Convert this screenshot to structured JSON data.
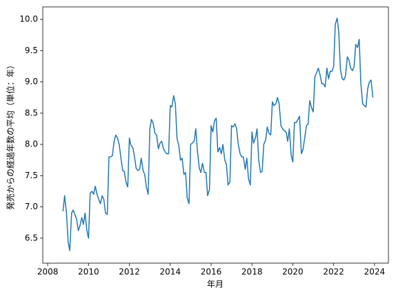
{
  "chart_data": {
    "type": "line",
    "x_label": "年月",
    "y_label": "発売からの経過年数の平均（単位：年）",
    "x": [
      2008.75,
      2008.83,
      2008.92,
      2009.0,
      2009.08,
      2009.17,
      2009.25,
      2009.33,
      2009.42,
      2009.5,
      2009.58,
      2009.67,
      2009.75,
      2009.83,
      2009.92,
      2010.0,
      2010.08,
      2010.17,
      2010.25,
      2010.33,
      2010.42,
      2010.5,
      2010.58,
      2010.67,
      2010.75,
      2010.83,
      2010.92,
      2011.0,
      2011.08,
      2011.17,
      2011.25,
      2011.33,
      2011.42,
      2011.5,
      2011.58,
      2011.67,
      2011.75,
      2011.83,
      2011.92,
      2012.0,
      2012.08,
      2012.17,
      2012.25,
      2012.33,
      2012.42,
      2012.5,
      2012.58,
      2012.67,
      2012.75,
      2012.83,
      2012.92,
      2013.0,
      2013.08,
      2013.17,
      2013.25,
      2013.33,
      2013.42,
      2013.5,
      2013.58,
      2013.67,
      2013.75,
      2013.83,
      2013.92,
      2014.0,
      2014.08,
      2014.17,
      2014.25,
      2014.33,
      2014.42,
      2014.5,
      2014.58,
      2014.67,
      2014.75,
      2014.83,
      2014.92,
      2015.0,
      2015.08,
      2015.17,
      2015.25,
      2015.33,
      2015.42,
      2015.5,
      2015.58,
      2015.67,
      2015.75,
      2015.83,
      2015.92,
      2016.0,
      2016.08,
      2016.17,
      2016.25,
      2016.33,
      2016.42,
      2016.5,
      2016.58,
      2016.67,
      2016.75,
      2016.83,
      2016.92,
      2017.0,
      2017.08,
      2017.17,
      2017.25,
      2017.33,
      2017.42,
      2017.5,
      2017.58,
      2017.67,
      2017.75,
      2017.83,
      2017.92,
      2018.0,
      2018.08,
      2018.17,
      2018.25,
      2018.33,
      2018.42,
      2018.5,
      2018.58,
      2018.67,
      2018.75,
      2018.83,
      2018.92,
      2019.0,
      2019.08,
      2019.17,
      2019.25,
      2019.33,
      2019.42,
      2019.5,
      2019.58,
      2019.67,
      2019.75,
      2019.83,
      2019.92,
      2020.0,
      2020.08,
      2020.17,
      2020.25,
      2020.33,
      2020.42,
      2020.5,
      2020.58,
      2020.67,
      2020.75,
      2020.83,
      2020.92,
      2021.0,
      2021.08,
      2021.17,
      2021.25,
      2021.33,
      2021.42,
      2021.5,
      2021.58,
      2021.67,
      2021.75,
      2021.83,
      2021.92,
      2022.0,
      2022.08,
      2022.17,
      2022.25,
      2022.33,
      2022.42,
      2022.5,
      2022.58,
      2022.67,
      2022.75,
      2022.83,
      2022.92,
      2023.0,
      2023.08,
      2023.17,
      2023.25,
      2023.33,
      2023.42,
      2023.5,
      2023.58,
      2023.67,
      2023.75,
      2023.83,
      2023.92
    ],
    "series": [
      {
        "color": "#1f77b4",
        "values": [
          6.93,
          7.18,
          6.9,
          6.45,
          6.3,
          6.9,
          6.95,
          6.88,
          6.8,
          6.62,
          6.7,
          6.83,
          6.72,
          6.9,
          6.62,
          6.5,
          7.22,
          7.25,
          7.2,
          7.33,
          7.2,
          7.12,
          7.05,
          7.18,
          7.12,
          6.9,
          6.88,
          7.8,
          7.8,
          7.82,
          8.05,
          8.15,
          8.1,
          8.0,
          7.8,
          7.58,
          7.57,
          7.4,
          7.32,
          8.1,
          7.98,
          7.95,
          7.8,
          7.62,
          7.58,
          7.6,
          7.78,
          7.58,
          7.52,
          7.32,
          7.2,
          8.25,
          8.4,
          8.33,
          8.18,
          8.15,
          7.93,
          8.02,
          8.05,
          7.93,
          7.88,
          7.85,
          7.85,
          8.62,
          8.6,
          8.78,
          8.65,
          8.1,
          7.98,
          7.75,
          7.78,
          7.52,
          7.55,
          7.15,
          7.05,
          8.0,
          8.02,
          8.05,
          8.25,
          7.9,
          7.62,
          7.55,
          7.7,
          7.55,
          7.55,
          7.18,
          7.28,
          8.3,
          8.2,
          8.38,
          8.42,
          7.88,
          7.95,
          7.85,
          8.0,
          7.75,
          7.68,
          7.35,
          7.4,
          8.3,
          8.28,
          8.33,
          8.25,
          8.0,
          7.85,
          7.8,
          7.8,
          7.6,
          7.78,
          7.45,
          7.35,
          8.2,
          8.02,
          8.1,
          8.25,
          7.75,
          7.55,
          7.57,
          8.0,
          8.07,
          8.28,
          8.18,
          8.15,
          8.68,
          8.62,
          8.65,
          8.75,
          8.65,
          8.3,
          8.25,
          8.22,
          8.2,
          8.05,
          8.25,
          7.83,
          7.72,
          8.35,
          8.35,
          8.4,
          8.45,
          7.85,
          7.92,
          8.1,
          8.3,
          8.33,
          8.7,
          8.58,
          8.52,
          9.08,
          9.15,
          9.22,
          9.12,
          8.97,
          8.97,
          8.92,
          9.22,
          9.05,
          9.17,
          9.17,
          9.25,
          9.92,
          10.02,
          9.8,
          9.2,
          9.05,
          9.03,
          9.1,
          9.4,
          9.35,
          9.22,
          9.18,
          9.25,
          9.6,
          9.55,
          9.68,
          8.98,
          8.65,
          8.62,
          8.6,
          8.9,
          9.0,
          9.03,
          8.75
        ]
      }
    ],
    "xlim": [
      2007.76,
      2024.68
    ],
    "ylim": [
      6.1,
      10.2
    ],
    "xticks": [
      2008,
      2010,
      2012,
      2014,
      2016,
      2018,
      2020,
      2022,
      2024
    ],
    "yticks": [
      6.5,
      {
        "value": 7,
        "label": "7.0"
      },
      7.5,
      {
        "value": 8,
        "label": "8.0"
      },
      8.5,
      {
        "value": 9,
        "label": "9.0"
      },
      9.5,
      {
        "value": 10,
        "label": "10.0"
      }
    ],
    "grid": false
  }
}
